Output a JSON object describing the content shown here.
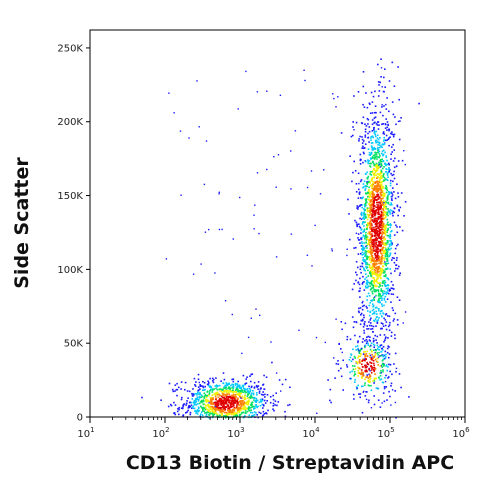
{
  "chart_data": {
    "type": "scatter",
    "subtype": "flow-cytometry density plot (pseudocolor dot plot)",
    "xlabel": "CD13 Biotin / Streptavidin APC",
    "ylabel": "Side Scatter",
    "x_scale": "log",
    "xlim": [
      10,
      1000000
    ],
    "y_scale": "linear",
    "ylim": [
      0,
      262144
    ],
    "x_ticks": [
      {
        "base": "10",
        "exp": "1",
        "value": 10
      },
      {
        "base": "10",
        "exp": "2",
        "value": 100
      },
      {
        "base": "10",
        "exp": "3",
        "value": 1000
      },
      {
        "base": "10",
        "exp": "4",
        "value": 10000
      },
      {
        "base": "10",
        "exp": "5",
        "value": 100000
      },
      {
        "base": "10",
        "exp": "6",
        "value": 1000000
      }
    ],
    "y_ticks": [
      {
        "label": "0",
        "value": 0
      },
      {
        "label": "50K",
        "value": 50000
      },
      {
        "label": "100K",
        "value": 100000
      },
      {
        "label": "150K",
        "value": 150000
      },
      {
        "label": "200K",
        "value": 200000
      },
      {
        "label": "250K",
        "value": 250000
      }
    ],
    "grid": false,
    "legend": "none",
    "color_scale": [
      "#1a1aff",
      "#00c8ff",
      "#00e060",
      "#f0f000",
      "#ff8000",
      "#e00000"
    ],
    "populations": [
      {
        "label": "",
        "x_center": 650,
        "x_log_sd": 0.28,
        "y_center": 10000,
        "y_sd": 8000,
        "relative_count": 0.3
      },
      {
        "label": "",
        "x_center": 65000,
        "x_log_sd": 0.12,
        "y_center": 130000,
        "y_sd": 38000,
        "relative_count": 0.52
      },
      {
        "label": "",
        "x_center": 50000,
        "x_log_sd": 0.16,
        "y_center": 35000,
        "y_sd": 10000,
        "relative_count": 0.08
      }
    ]
  }
}
